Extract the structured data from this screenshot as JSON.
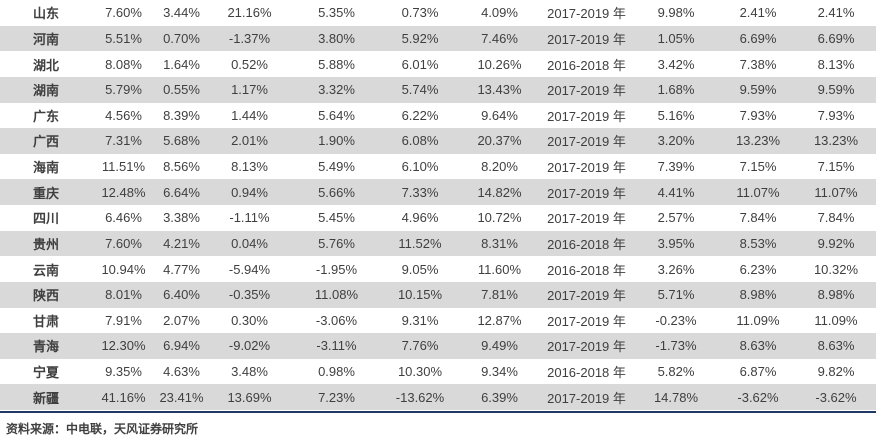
{
  "chart_data": {
    "type": "table",
    "rows": [
      {
        "province": "山东",
        "values": [
          "7.60%",
          "3.44%",
          "21.16%",
          "5.35%",
          "0.73%",
          "4.09%"
        ],
        "period": "2017-2019 年",
        "values2": [
          "9.98%",
          "2.41%",
          "2.41%"
        ]
      },
      {
        "province": "河南",
        "values": [
          "5.51%",
          "0.70%",
          "-1.37%",
          "3.80%",
          "5.92%",
          "7.46%"
        ],
        "period": "2017-2019 年",
        "values2": [
          "1.05%",
          "6.69%",
          "6.69%"
        ]
      },
      {
        "province": "湖北",
        "values": [
          "8.08%",
          "1.64%",
          "0.52%",
          "5.88%",
          "6.01%",
          "10.26%"
        ],
        "period": "2016-2018 年",
        "values2": [
          "3.42%",
          "7.38%",
          "8.13%"
        ]
      },
      {
        "province": "湖南",
        "values": [
          "5.79%",
          "0.55%",
          "1.17%",
          "3.32%",
          "5.74%",
          "13.43%"
        ],
        "period": "2017-2019 年",
        "values2": [
          "1.68%",
          "9.59%",
          "9.59%"
        ]
      },
      {
        "province": "广东",
        "values": [
          "4.56%",
          "8.39%",
          "1.44%",
          "5.64%",
          "6.22%",
          "9.64%"
        ],
        "period": "2017-2019 年",
        "values2": [
          "5.16%",
          "7.93%",
          "7.93%"
        ]
      },
      {
        "province": "广西",
        "values": [
          "7.31%",
          "5.68%",
          "2.01%",
          "1.90%",
          "6.08%",
          "20.37%"
        ],
        "period": "2017-2019 年",
        "values2": [
          "3.20%",
          "13.23%",
          "13.23%"
        ]
      },
      {
        "province": "海南",
        "values": [
          "11.51%",
          "8.56%",
          "8.13%",
          "5.49%",
          "6.10%",
          "8.20%"
        ],
        "period": "2017-2019 年",
        "values2": [
          "7.39%",
          "7.15%",
          "7.15%"
        ]
      },
      {
        "province": "重庆",
        "values": [
          "12.48%",
          "6.64%",
          "0.94%",
          "5.66%",
          "7.33%",
          "14.82%"
        ],
        "period": "2017-2019 年",
        "values2": [
          "4.41%",
          "11.07%",
          "11.07%"
        ]
      },
      {
        "province": "四川",
        "values": [
          "6.46%",
          "3.38%",
          "-1.11%",
          "5.45%",
          "4.96%",
          "10.72%"
        ],
        "period": "2017-2019 年",
        "values2": [
          "2.57%",
          "7.84%",
          "7.84%"
        ]
      },
      {
        "province": "贵州",
        "values": [
          "7.60%",
          "4.21%",
          "0.04%",
          "5.76%",
          "11.52%",
          "8.31%"
        ],
        "period": "2016-2018 年",
        "values2": [
          "3.95%",
          "8.53%",
          "9.92%"
        ]
      },
      {
        "province": "云南",
        "values": [
          "10.94%",
          "4.77%",
          "-5.94%",
          "-1.95%",
          "9.05%",
          "11.60%"
        ],
        "period": "2016-2018 年",
        "values2": [
          "3.26%",
          "6.23%",
          "10.32%"
        ]
      },
      {
        "province": "陕西",
        "values": [
          "8.01%",
          "6.40%",
          "-0.35%",
          "11.08%",
          "10.15%",
          "7.81%"
        ],
        "period": "2017-2019 年",
        "values2": [
          "5.71%",
          "8.98%",
          "8.98%"
        ]
      },
      {
        "province": "甘肃",
        "values": [
          "7.91%",
          "2.07%",
          "0.30%",
          "-3.06%",
          "9.31%",
          "12.87%"
        ],
        "period": "2017-2019 年",
        "values2": [
          "-0.23%",
          "11.09%",
          "11.09%"
        ]
      },
      {
        "province": "青海",
        "values": [
          "12.30%",
          "6.94%",
          "-9.02%",
          "-3.11%",
          "7.76%",
          "9.49%"
        ],
        "period": "2017-2019 年",
        "values2": [
          "-1.73%",
          "8.63%",
          "8.63%"
        ]
      },
      {
        "province": "宁夏",
        "values": [
          "9.35%",
          "4.63%",
          "3.48%",
          "0.98%",
          "10.30%",
          "9.34%"
        ],
        "period": "2016-2018 年",
        "values2": [
          "5.82%",
          "6.87%",
          "9.82%"
        ]
      },
      {
        "province": "新疆",
        "values": [
          "41.16%",
          "23.41%",
          "13.69%",
          "7.23%",
          "-13.62%",
          "6.39%"
        ],
        "period": "2017-2019 年",
        "values2": [
          "14.78%",
          "-3.62%",
          "-3.62%"
        ]
      }
    ]
  },
  "footer": {
    "source": "资料来源：中电联，天风证券研究所"
  },
  "colors": {
    "row_alt": "#d9d9d9",
    "rule": "#1f3864",
    "value_text": "#3f3f3f",
    "province_text": "#1f1f1f"
  }
}
